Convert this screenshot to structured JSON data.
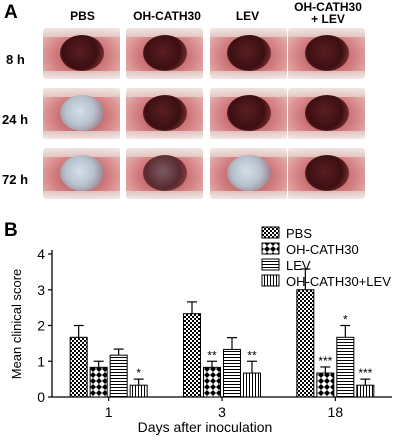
{
  "panel_a": {
    "letter": "A",
    "columns": [
      "PBS",
      "OH-CATH30",
      "LEV",
      "OH-CATH30\n+ LEV"
    ],
    "rows": [
      "8 h",
      "24 h",
      "72 h"
    ],
    "photo_states": [
      [
        "clear",
        "clear",
        "clear",
        "clear"
      ],
      [
        "cloudy",
        "clear",
        "clear",
        "clear"
      ],
      [
        "cloudy",
        "mild",
        "cloudy",
        "clear"
      ]
    ]
  },
  "panel_b": {
    "letter": "B"
  },
  "chart_data": {
    "type": "bar",
    "categories": [
      "1",
      "3",
      "18"
    ],
    "series": [
      {
        "name": "PBS",
        "values": [
          1.67,
          2.33,
          3.0
        ],
        "errors": [
          0.33,
          0.33,
          0.58
        ],
        "sig": [
          "",
          "",
          ""
        ],
        "pattern": "checker"
      },
      {
        "name": "OH-CATH30",
        "values": [
          0.83,
          0.83,
          0.67
        ],
        "errors": [
          0.17,
          0.17,
          0.17
        ],
        "sig": [
          "",
          "**",
          "***"
        ],
        "pattern": "diamond"
      },
      {
        "name": "LEV",
        "values": [
          1.17,
          1.33,
          1.67
        ],
        "errors": [
          0.17,
          0.33,
          0.33
        ],
        "sig": [
          "",
          "",
          "*"
        ],
        "pattern": "hlines"
      },
      {
        "name": "OH-CATH30+LEV",
        "values": [
          0.33,
          0.67,
          0.33
        ],
        "errors": [
          0.17,
          0.33,
          0.17
        ],
        "sig": [
          "*",
          "**",
          "***"
        ],
        "pattern": "vlines"
      }
    ],
    "xlabel": "Days after inoculation",
    "ylabel": "Mean clinical score",
    "ylim": [
      0,
      4
    ],
    "yticks": [
      "0",
      "1",
      "2",
      "3",
      "4"
    ],
    "legend_position": "top-right",
    "grid": false
  }
}
